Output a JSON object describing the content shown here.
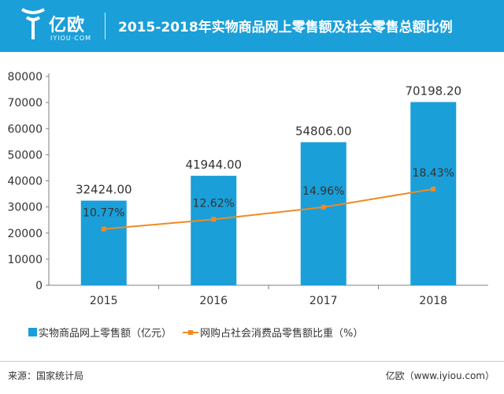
{
  "header": {
    "logo_name": "亿欧",
    "logo_sub": "IYIOU·COM",
    "title": "2015-2018年实物商品网上零售额及社会零售总额比例"
  },
  "colors": {
    "header_bg": "#1a9fd9",
    "bar": "#1a9fd9",
    "line": "#f08a24"
  },
  "chart_data": {
    "type": "bar",
    "title": "2015-2018年实物商品网上零售额及社会零售总额比例",
    "categories": [
      "2015",
      "2016",
      "2017",
      "2018"
    ],
    "series": [
      {
        "name": "实物商品网上零售额（亿元）",
        "type": "bar",
        "values": [
          32424.0,
          41944.0,
          54806.0,
          70198.2
        ],
        "labels": [
          "32424.00",
          "41944.00",
          "54806.00",
          "70198.20"
        ]
      },
      {
        "name": "网购占社会消费品零售额比重（%）",
        "type": "line",
        "values": [
          10.77,
          12.62,
          14.96,
          18.43
        ],
        "labels": [
          "10.77%",
          "12.62%",
          "14.96%",
          "18.43%"
        ]
      }
    ],
    "ylim": [
      0,
      80000
    ],
    "yticks": [
      0,
      10000,
      20000,
      30000,
      40000,
      50000,
      60000,
      70000,
      80000
    ],
    "ytick_labels": [
      "0",
      "10000",
      "20000",
      "30000",
      "40000",
      "50000",
      "60000",
      "70000",
      "80000"
    ],
    "line_axis_ylim": [
      0,
      40
    ],
    "grid": false,
    "legend_position": "bottom-left"
  },
  "footer": {
    "source": "来源：国家统计局",
    "credit": "亿欧（www.iyiou.com）"
  }
}
